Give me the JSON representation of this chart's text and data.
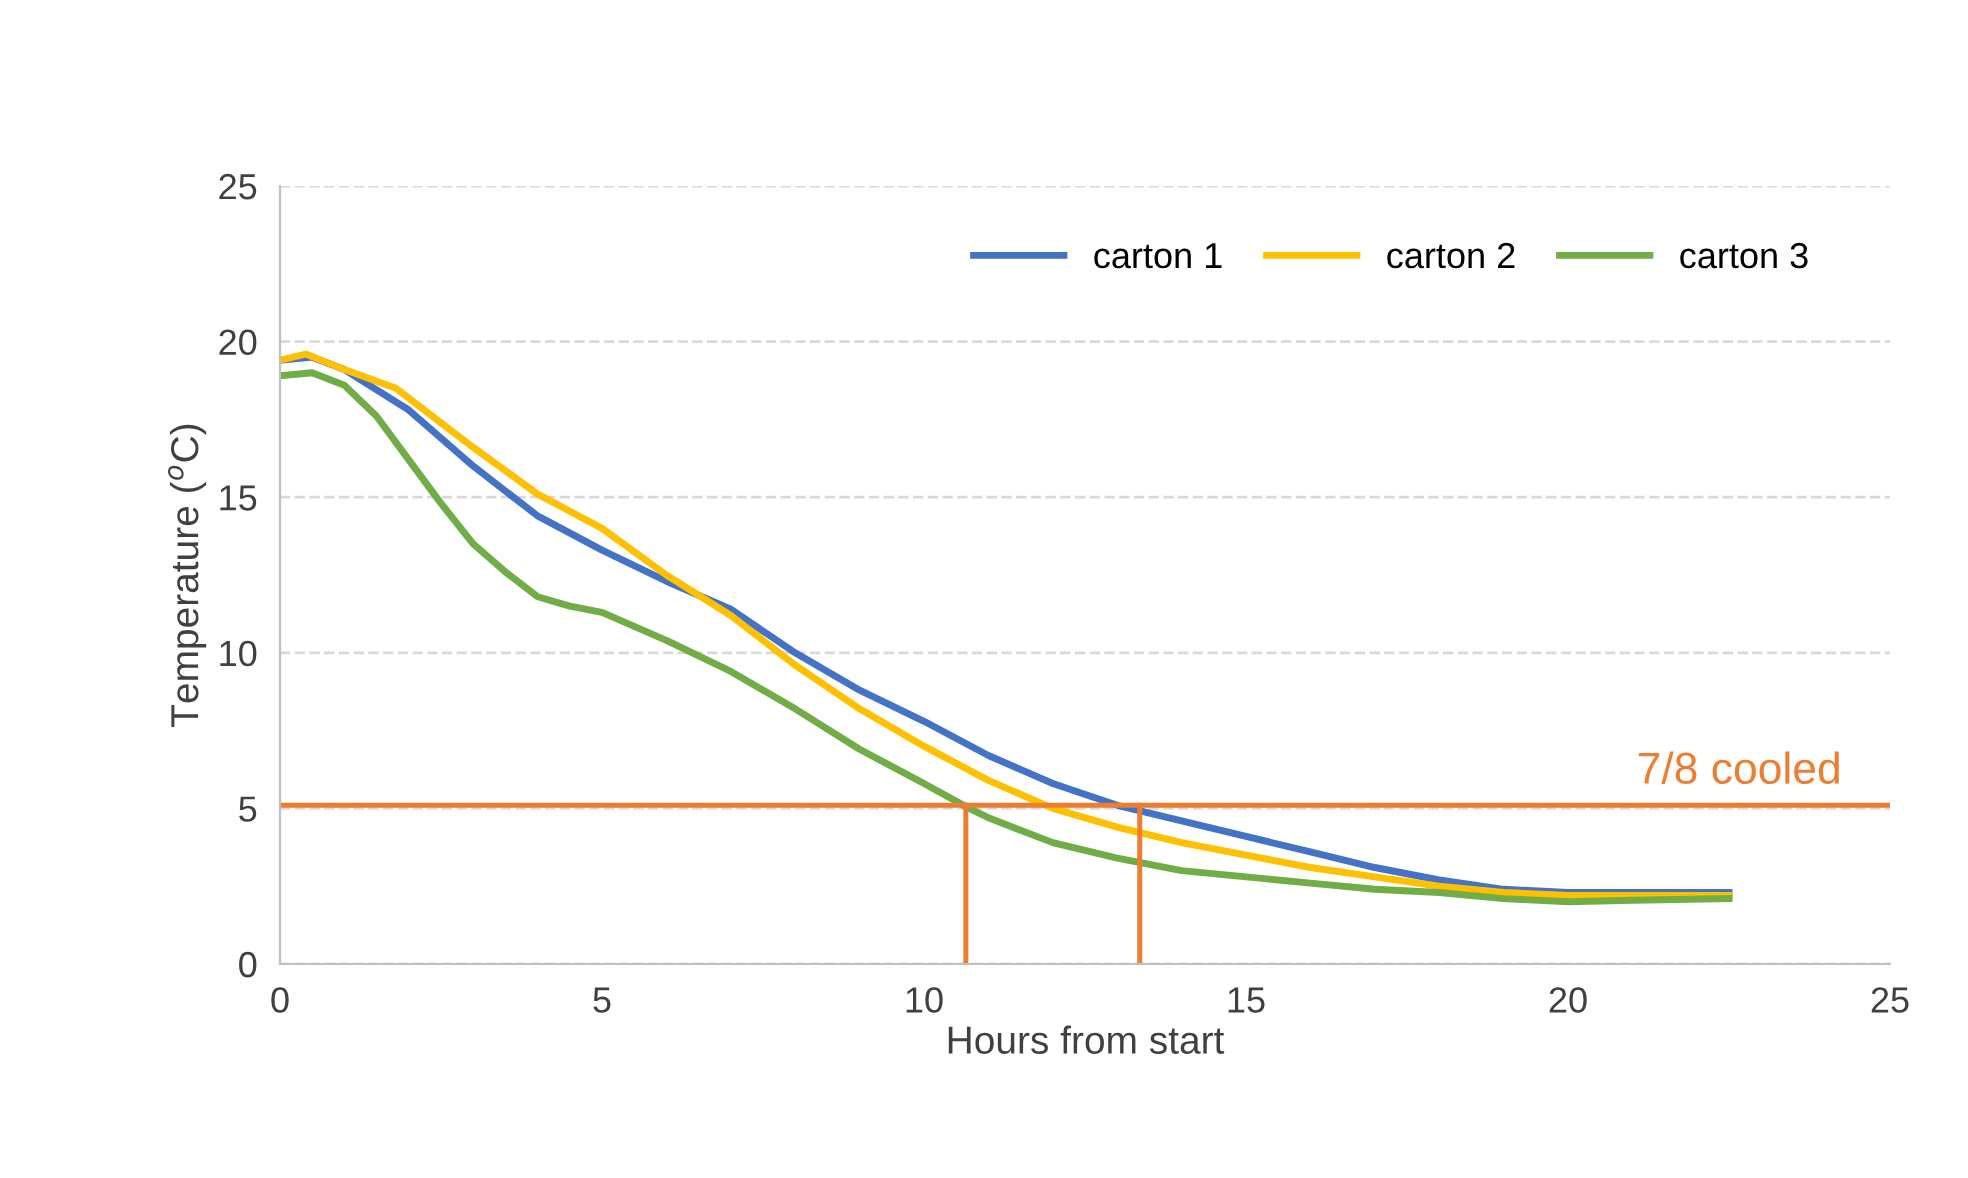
{
  "chart_data": {
    "type": "line",
    "xlabel": "Hours from start",
    "ylabel": "Temperature ($^{o}$C)",
    "xlim": [
      0,
      25
    ],
    "ylim": [
      0,
      25
    ],
    "xticks": [
      0,
      5,
      10,
      15,
      20,
      25
    ],
    "yticks": [
      0,
      5,
      10,
      15,
      20,
      25
    ],
    "grid": "y",
    "legend": "top right",
    "line_style": "solid",
    "marker": "none",
    "series": [
      {
        "name": "carton 1",
        "color": "#4472c4",
        "x": [
          0,
          0.5,
          1,
          2,
          3,
          4,
          5,
          6,
          7,
          8,
          9,
          10,
          11,
          12,
          13,
          14,
          15,
          16,
          17,
          18,
          19,
          20,
          21,
          22.5
        ],
        "values": [
          19.4,
          19.5,
          19.1,
          17.8,
          16.0,
          14.4,
          13.3,
          12.3,
          11.4,
          10.0,
          8.8,
          7.8,
          6.7,
          5.8,
          5.1,
          4.6,
          4.1,
          3.6,
          3.1,
          2.7,
          2.4,
          2.3,
          2.3,
          2.3
        ]
      },
      {
        "name": "carton 2",
        "color": "#ffc000",
        "x": [
          0,
          0.4,
          1,
          1.8,
          3,
          4,
          5,
          6,
          7,
          8,
          9,
          10,
          11,
          12,
          13,
          14,
          15,
          16,
          17,
          18,
          19,
          20,
          21,
          22.5
        ],
        "values": [
          19.4,
          19.6,
          19.1,
          18.5,
          16.6,
          15.1,
          14.0,
          12.5,
          11.2,
          9.6,
          8.2,
          7.0,
          5.9,
          5.0,
          4.4,
          3.9,
          3.5,
          3.1,
          2.8,
          2.5,
          2.3,
          2.2,
          2.2,
          2.2
        ]
      },
      {
        "name": "carton 3",
        "color": "#70ad47",
        "x": [
          0,
          0.5,
          1,
          1.5,
          2,
          2.5,
          3,
          3.5,
          4,
          4.5,
          5,
          6,
          7,
          8,
          9,
          10,
          10.7,
          11,
          12,
          13,
          14,
          15,
          16,
          17,
          18,
          19,
          20,
          21,
          22.5
        ],
        "values": [
          18.9,
          19.0,
          18.6,
          17.6,
          16.2,
          14.8,
          13.5,
          12.6,
          11.8,
          11.5,
          11.3,
          10.4,
          9.4,
          8.2,
          6.9,
          5.8,
          5.0,
          4.7,
          3.9,
          3.4,
          3.0,
          2.8,
          2.6,
          2.4,
          2.3,
          2.1,
          2.0,
          2.05,
          2.1
        ]
      },
      {
        "color": "#ed7d31",
        "x": [
          10.65,
          10.65
        ],
        "values": [
          0,
          5.1
        ]
      },
      {
        "color": "#ed7d31",
        "x": [
          13.35,
          13.35
        ],
        "values": [
          0,
          5.1
        ]
      }
    ],
    "ref_lines": [
      {
        "axis": "y",
        "value": 5.1,
        "label": "7/8 cooled",
        "color": "#ed7d31"
      }
    ]
  }
}
